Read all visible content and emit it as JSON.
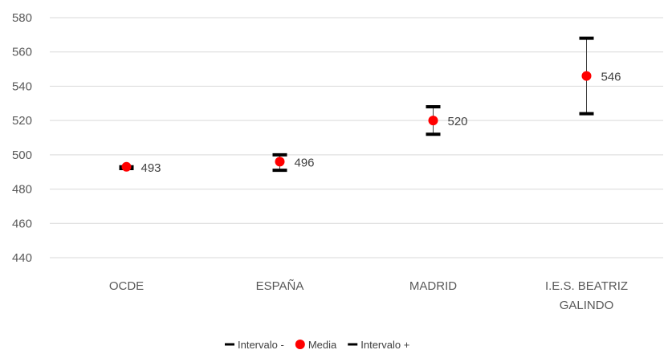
{
  "chart_data": {
    "type": "scatter",
    "title": "",
    "xlabel": "",
    "ylabel": "",
    "categories": [
      [
        "OCDE"
      ],
      [
        "ESPAÑA"
      ],
      [
        "MADRID"
      ],
      [
        "I.E.S. BEATRIZ",
        "GALINDO"
      ]
    ],
    "ylim": [
      440,
      580
    ],
    "yticks": [
      440,
      460,
      480,
      500,
      520,
      540,
      560,
      580
    ],
    "grid": true,
    "legend_position": "bottom",
    "series": [
      {
        "name": "Intervalo -",
        "marker": "dash",
        "color": "#000000",
        "values": [
          492,
          491,
          512,
          524
        ]
      },
      {
        "name": "Media",
        "marker": "circle",
        "color": "#ff0000",
        "values": [
          493,
          496,
          520,
          546
        ],
        "data_labels": [
          "493",
          "496",
          "520",
          "546"
        ]
      },
      {
        "name": "Intervalo +",
        "marker": "dash",
        "color": "#000000",
        "values": [
          493,
          500,
          528,
          568
        ]
      }
    ]
  }
}
